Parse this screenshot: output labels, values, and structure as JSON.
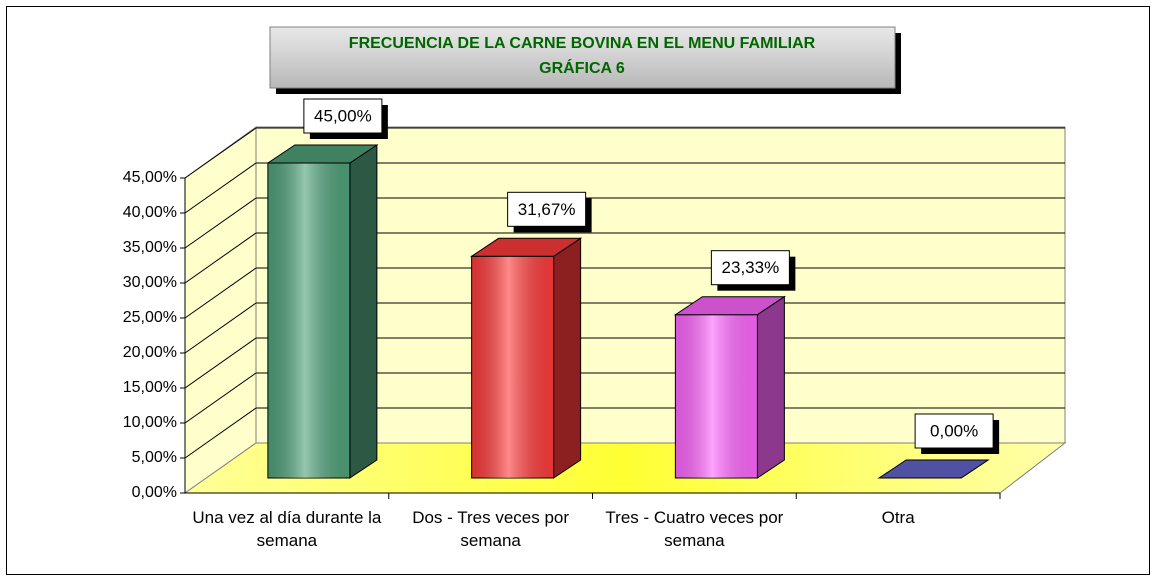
{
  "chart_data": {
    "type": "bar3d",
    "title": "FRECUENCIA DE LA CARNE BOVINA EN EL MENU FAMILIAR",
    "subtitle": "GRÁFICA 6",
    "categories": [
      "Una vez al día durante la semana",
      "Dos - Tres veces por semana",
      "Tres - Cuatro veces por semana",
      "Otra"
    ],
    "values": [
      45,
      31.67,
      23.33,
      0
    ],
    "value_labels": [
      "45,00%",
      "31,67%",
      "23,33%",
      "0,00%"
    ],
    "colors": [
      "#4fa27a",
      "#ff3b3b",
      "#ff66ff",
      "#6666cc"
    ],
    "ylim": [
      0,
      45
    ],
    "yticks": [
      {
        "value": 0,
        "label": "0,00%"
      },
      {
        "value": 5,
        "label": "5,00%"
      },
      {
        "value": 10,
        "label": "10,00%"
      },
      {
        "value": 15,
        "label": "15,00%"
      },
      {
        "value": 20,
        "label": "20,00%"
      },
      {
        "value": 25,
        "label": "25,00%"
      },
      {
        "value": 30,
        "label": "30,00%"
      },
      {
        "value": 35,
        "label": "35,00%"
      },
      {
        "value": 40,
        "label": "40,00%"
      },
      {
        "value": 45,
        "label": "45,00%"
      }
    ],
    "grid": true
  }
}
